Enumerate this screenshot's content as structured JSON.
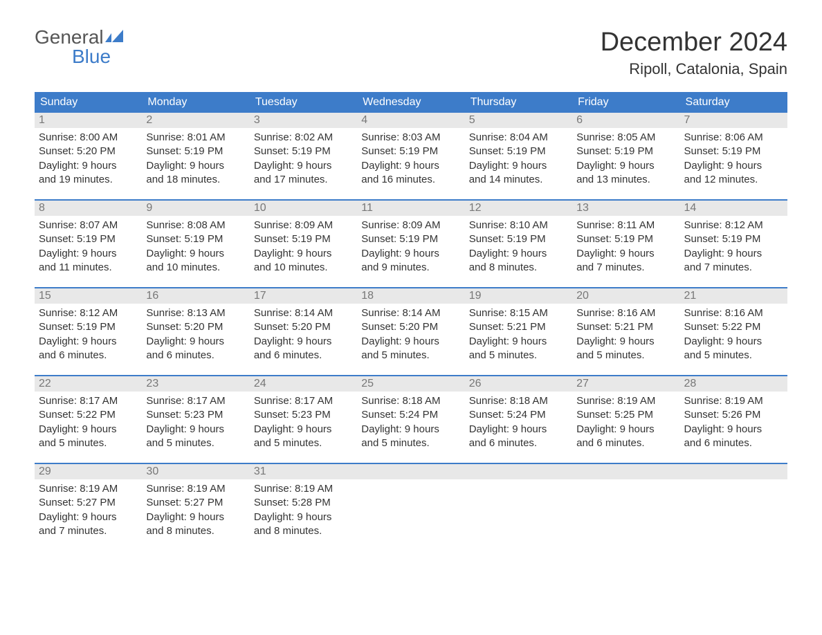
{
  "logo": {
    "top": "General",
    "bottom": "Blue"
  },
  "title": "December 2024",
  "location": "Ripoll, Catalonia, Spain",
  "colors": {
    "header_bg": "#3d7cc9",
    "header_text": "#ffffff",
    "daynum_bg": "#e8e8e8",
    "daynum_text": "#777777",
    "body_text": "#333333",
    "week_border": "#3d7cc9"
  },
  "weekdays": [
    "Sunday",
    "Monday",
    "Tuesday",
    "Wednesday",
    "Thursday",
    "Friday",
    "Saturday"
  ],
  "weeks": [
    [
      {
        "n": "1",
        "sunrise": "Sunrise: 8:00 AM",
        "sunset": "Sunset: 5:20 PM",
        "d1": "Daylight: 9 hours",
        "d2": "and 19 minutes."
      },
      {
        "n": "2",
        "sunrise": "Sunrise: 8:01 AM",
        "sunset": "Sunset: 5:19 PM",
        "d1": "Daylight: 9 hours",
        "d2": "and 18 minutes."
      },
      {
        "n": "3",
        "sunrise": "Sunrise: 8:02 AM",
        "sunset": "Sunset: 5:19 PM",
        "d1": "Daylight: 9 hours",
        "d2": "and 17 minutes."
      },
      {
        "n": "4",
        "sunrise": "Sunrise: 8:03 AM",
        "sunset": "Sunset: 5:19 PM",
        "d1": "Daylight: 9 hours",
        "d2": "and 16 minutes."
      },
      {
        "n": "5",
        "sunrise": "Sunrise: 8:04 AM",
        "sunset": "Sunset: 5:19 PM",
        "d1": "Daylight: 9 hours",
        "d2": "and 14 minutes."
      },
      {
        "n": "6",
        "sunrise": "Sunrise: 8:05 AM",
        "sunset": "Sunset: 5:19 PM",
        "d1": "Daylight: 9 hours",
        "d2": "and 13 minutes."
      },
      {
        "n": "7",
        "sunrise": "Sunrise: 8:06 AM",
        "sunset": "Sunset: 5:19 PM",
        "d1": "Daylight: 9 hours",
        "d2": "and 12 minutes."
      }
    ],
    [
      {
        "n": "8",
        "sunrise": "Sunrise: 8:07 AM",
        "sunset": "Sunset: 5:19 PM",
        "d1": "Daylight: 9 hours",
        "d2": "and 11 minutes."
      },
      {
        "n": "9",
        "sunrise": "Sunrise: 8:08 AM",
        "sunset": "Sunset: 5:19 PM",
        "d1": "Daylight: 9 hours",
        "d2": "and 10 minutes."
      },
      {
        "n": "10",
        "sunrise": "Sunrise: 8:09 AM",
        "sunset": "Sunset: 5:19 PM",
        "d1": "Daylight: 9 hours",
        "d2": "and 10 minutes."
      },
      {
        "n": "11",
        "sunrise": "Sunrise: 8:09 AM",
        "sunset": "Sunset: 5:19 PM",
        "d1": "Daylight: 9 hours",
        "d2": "and 9 minutes."
      },
      {
        "n": "12",
        "sunrise": "Sunrise: 8:10 AM",
        "sunset": "Sunset: 5:19 PM",
        "d1": "Daylight: 9 hours",
        "d2": "and 8 minutes."
      },
      {
        "n": "13",
        "sunrise": "Sunrise: 8:11 AM",
        "sunset": "Sunset: 5:19 PM",
        "d1": "Daylight: 9 hours",
        "d2": "and 7 minutes."
      },
      {
        "n": "14",
        "sunrise": "Sunrise: 8:12 AM",
        "sunset": "Sunset: 5:19 PM",
        "d1": "Daylight: 9 hours",
        "d2": "and 7 minutes."
      }
    ],
    [
      {
        "n": "15",
        "sunrise": "Sunrise: 8:12 AM",
        "sunset": "Sunset: 5:19 PM",
        "d1": "Daylight: 9 hours",
        "d2": "and 6 minutes."
      },
      {
        "n": "16",
        "sunrise": "Sunrise: 8:13 AM",
        "sunset": "Sunset: 5:20 PM",
        "d1": "Daylight: 9 hours",
        "d2": "and 6 minutes."
      },
      {
        "n": "17",
        "sunrise": "Sunrise: 8:14 AM",
        "sunset": "Sunset: 5:20 PM",
        "d1": "Daylight: 9 hours",
        "d2": "and 6 minutes."
      },
      {
        "n": "18",
        "sunrise": "Sunrise: 8:14 AM",
        "sunset": "Sunset: 5:20 PM",
        "d1": "Daylight: 9 hours",
        "d2": "and 5 minutes."
      },
      {
        "n": "19",
        "sunrise": "Sunrise: 8:15 AM",
        "sunset": "Sunset: 5:21 PM",
        "d1": "Daylight: 9 hours",
        "d2": "and 5 minutes."
      },
      {
        "n": "20",
        "sunrise": "Sunrise: 8:16 AM",
        "sunset": "Sunset: 5:21 PM",
        "d1": "Daylight: 9 hours",
        "d2": "and 5 minutes."
      },
      {
        "n": "21",
        "sunrise": "Sunrise: 8:16 AM",
        "sunset": "Sunset: 5:22 PM",
        "d1": "Daylight: 9 hours",
        "d2": "and 5 minutes."
      }
    ],
    [
      {
        "n": "22",
        "sunrise": "Sunrise: 8:17 AM",
        "sunset": "Sunset: 5:22 PM",
        "d1": "Daylight: 9 hours",
        "d2": "and 5 minutes."
      },
      {
        "n": "23",
        "sunrise": "Sunrise: 8:17 AM",
        "sunset": "Sunset: 5:23 PM",
        "d1": "Daylight: 9 hours",
        "d2": "and 5 minutes."
      },
      {
        "n": "24",
        "sunrise": "Sunrise: 8:17 AM",
        "sunset": "Sunset: 5:23 PM",
        "d1": "Daylight: 9 hours",
        "d2": "and 5 minutes."
      },
      {
        "n": "25",
        "sunrise": "Sunrise: 8:18 AM",
        "sunset": "Sunset: 5:24 PM",
        "d1": "Daylight: 9 hours",
        "d2": "and 5 minutes."
      },
      {
        "n": "26",
        "sunrise": "Sunrise: 8:18 AM",
        "sunset": "Sunset: 5:24 PM",
        "d1": "Daylight: 9 hours",
        "d2": "and 6 minutes."
      },
      {
        "n": "27",
        "sunrise": "Sunrise: 8:19 AM",
        "sunset": "Sunset: 5:25 PM",
        "d1": "Daylight: 9 hours",
        "d2": "and 6 minutes."
      },
      {
        "n": "28",
        "sunrise": "Sunrise: 8:19 AM",
        "sunset": "Sunset: 5:26 PM",
        "d1": "Daylight: 9 hours",
        "d2": "and 6 minutes."
      }
    ],
    [
      {
        "n": "29",
        "sunrise": "Sunrise: 8:19 AM",
        "sunset": "Sunset: 5:27 PM",
        "d1": "Daylight: 9 hours",
        "d2": "and 7 minutes."
      },
      {
        "n": "30",
        "sunrise": "Sunrise: 8:19 AM",
        "sunset": "Sunset: 5:27 PM",
        "d1": "Daylight: 9 hours",
        "d2": "and 8 minutes."
      },
      {
        "n": "31",
        "sunrise": "Sunrise: 8:19 AM",
        "sunset": "Sunset: 5:28 PM",
        "d1": "Daylight: 9 hours",
        "d2": "and 8 minutes."
      },
      null,
      null,
      null,
      null
    ]
  ]
}
